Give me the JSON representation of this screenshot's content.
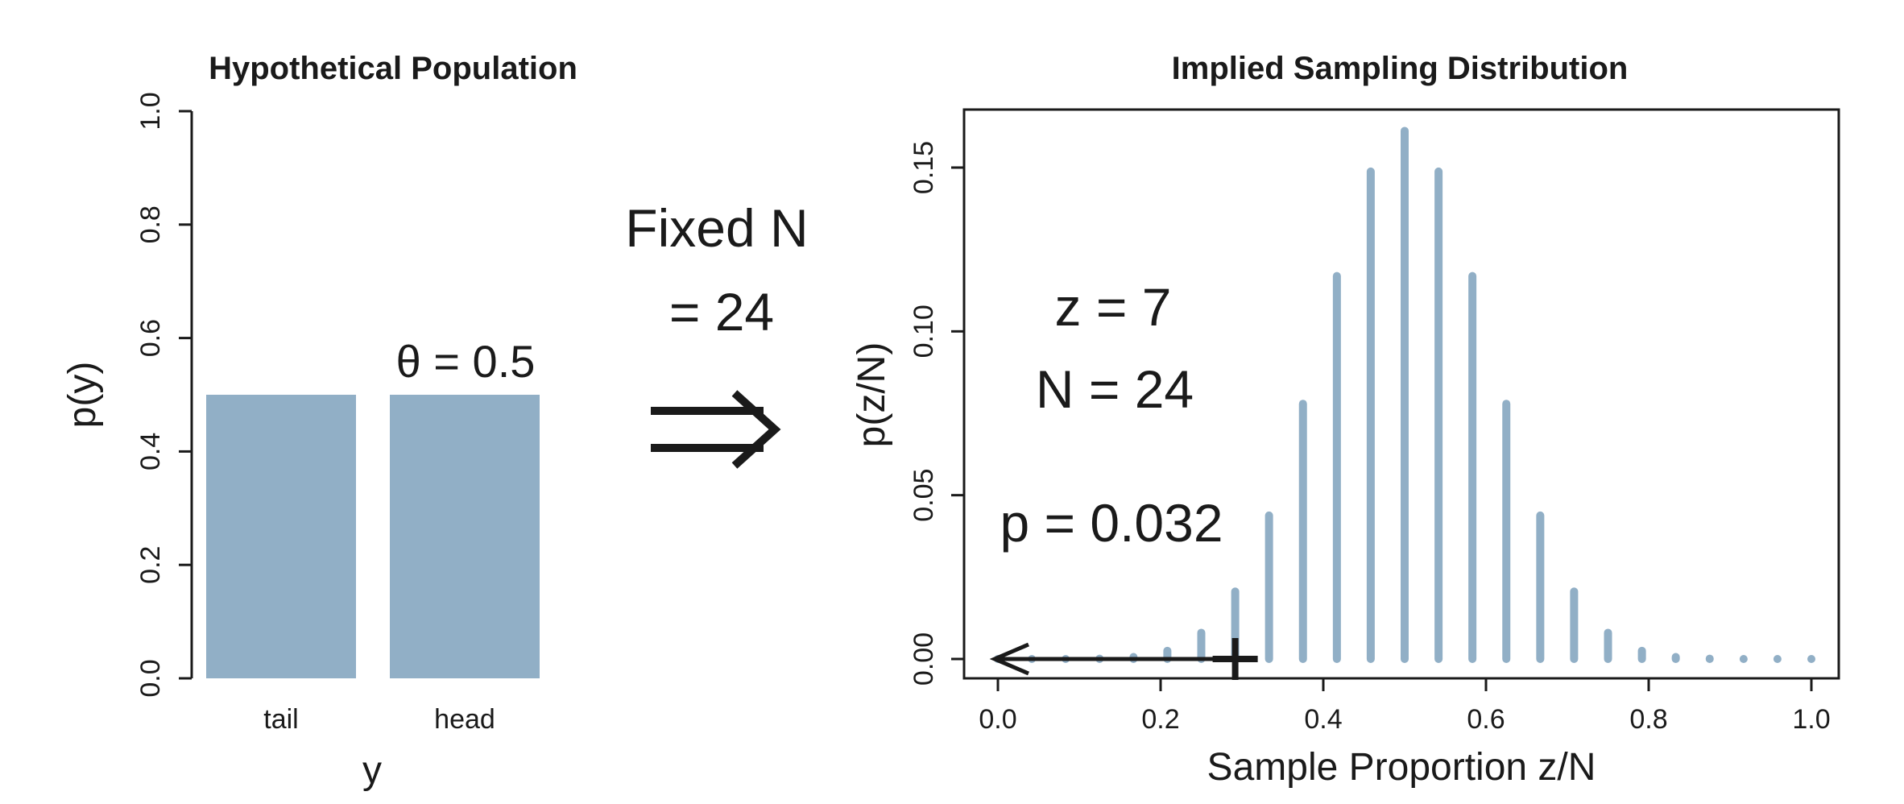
{
  "chart_data": [
    {
      "type": "bar",
      "title": "Hypothetical Population",
      "xlabel": "y",
      "ylabel": "p(y)",
      "categories": [
        "tail",
        "head"
      ],
      "values": [
        0.5,
        0.5
      ],
      "ylim": [
        0,
        1
      ],
      "yticks": [
        "0.0",
        "0.2",
        "0.4",
        "0.6",
        "0.8",
        "1.0"
      ],
      "annotation": "θ = 0.5",
      "bar_color": "#91afc6"
    },
    {
      "type": "bar",
      "title": "Implied Sampling Distribution",
      "xlabel": "Sample Proportion z/N",
      "ylabel": "p(z/N)",
      "xlim": [
        0,
        1
      ],
      "ylim": [
        0,
        0.165
      ],
      "xticks": [
        "0.0",
        "0.2",
        "0.4",
        "0.6",
        "0.8",
        "1.0"
      ],
      "yticks": [
        "0.00",
        "0.05",
        "0.10",
        "0.15"
      ],
      "N": 24,
      "x": [
        0,
        0.0417,
        0.0833,
        0.125,
        0.1667,
        0.2083,
        0.25,
        0.2917,
        0.3333,
        0.375,
        0.4167,
        0.4583,
        0.5,
        0.5417,
        0.5833,
        0.625,
        0.6667,
        0.7083,
        0.75,
        0.7917,
        0.8333,
        0.875,
        0.9167,
        0.9583,
        1
      ],
      "values": [
        0.0,
        0.0,
        0.0,
        0.0001,
        0.0006,
        0.0025,
        0.008,
        0.0206,
        0.0438,
        0.0779,
        0.1169,
        0.1488,
        0.1612,
        0.1488,
        0.1169,
        0.0779,
        0.0438,
        0.0206,
        0.008,
        0.0025,
        0.0006,
        0.0001,
        0.0,
        0.0,
        0.0
      ],
      "annotations": [
        "z = 7",
        "N = 24",
        "p = 0.032"
      ],
      "observed_marker_x": 0.2917,
      "bar_color": "#91afc6"
    }
  ],
  "middle": {
    "line1": "Fixed N",
    "line2": "= 24",
    "arrow": "⇒"
  }
}
